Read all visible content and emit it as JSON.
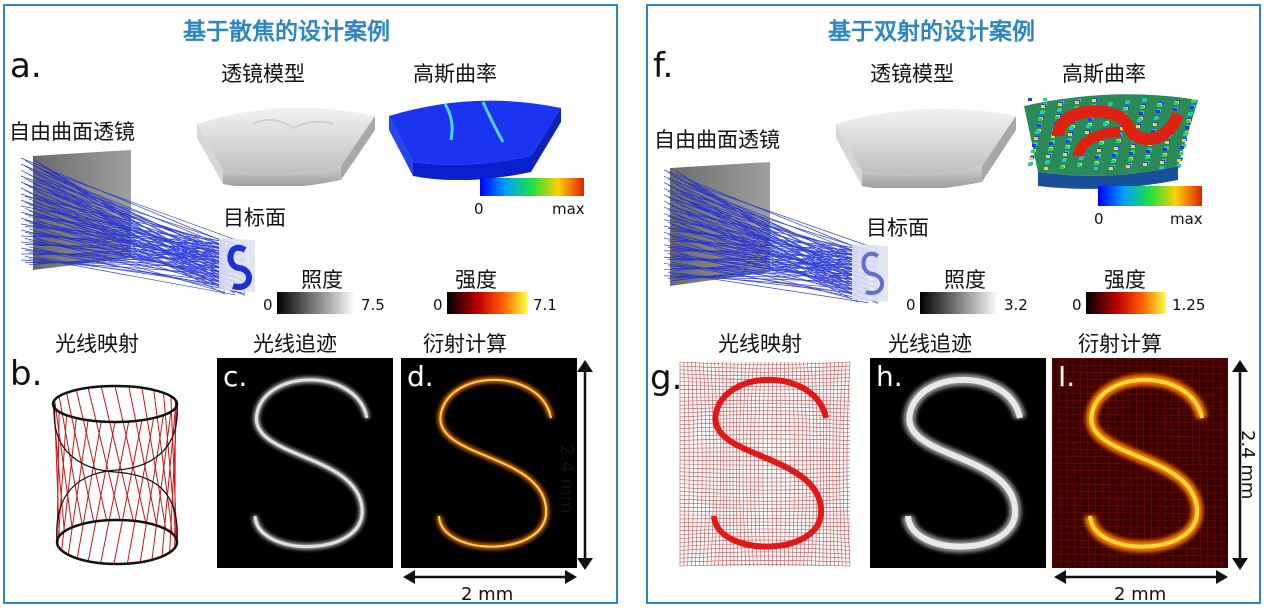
{
  "left": {
    "title": "基于散焦的设计案例",
    "label_a": "a.",
    "label_b": "b.",
    "label_c": "c.",
    "label_d": "d.",
    "lens_model": "透镜模型",
    "gaussian_curvature": "高斯曲率",
    "freeform_lens": "自由曲面透镜",
    "target_plane": "目标面",
    "curv_min": "0",
    "curv_max": "max",
    "illuminance": "照度",
    "illum_min": "0",
    "illum_max": "7.5",
    "intensity": "强度",
    "int_min": "0",
    "int_max": "7.1",
    "ray_mapping": "光线映射",
    "ray_tracing": "光线追迹",
    "diffraction": "衍射计算",
    "height_scale": "2.4 mm",
    "width_scale": "2 mm"
  },
  "right": {
    "title": "基于双射的设计案例",
    "label_f": "f.",
    "label_g": "g.",
    "label_h": "h.",
    "label_i": "I.",
    "lens_model": "透镜模型",
    "gaussian_curvature": "高斯曲率",
    "freeform_lens": "自由曲面透镜",
    "target_plane": "目标面",
    "curv_min": "0",
    "curv_max": "max",
    "illuminance": "照度",
    "illum_min": "0",
    "illum_max": "3.2",
    "intensity": "强度",
    "int_min": "0",
    "int_max": "1.25",
    "ray_mapping": "光线映射",
    "ray_tracing": "光线追迹",
    "diffraction": "衍射计算",
    "height_scale": "2.4 mm",
    "width_scale": "2 mm"
  },
  "colors": {
    "frame": "#2f86c3",
    "title": "#2c86c2",
    "ray_blue": "#1f2fd6",
    "mapping_red": "#c81414",
    "curvature_blue": "#1530e8"
  }
}
